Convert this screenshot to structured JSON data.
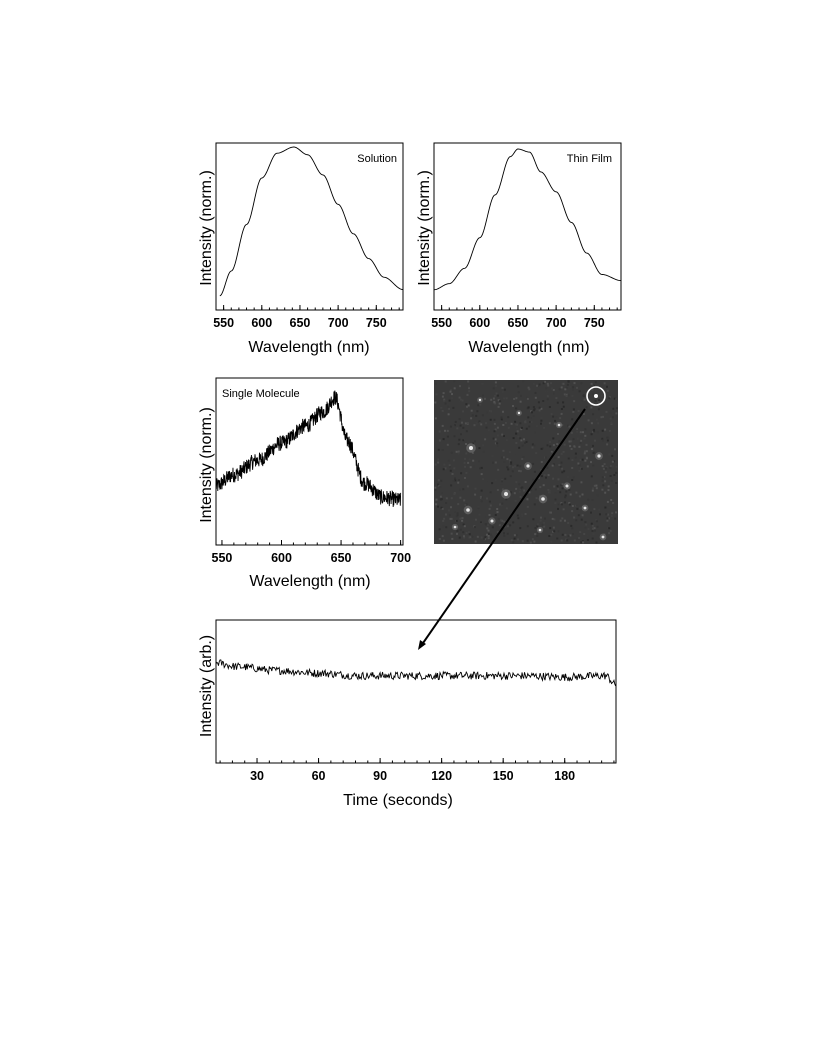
{
  "chart_data": [
    {
      "type": "line",
      "annotation": "Solution",
      "xlabel": "Wavelength (nm)",
      "ylabel": "Intensity (norm.)",
      "xlim": [
        540,
        785
      ],
      "ylim": [
        0,
        1
      ],
      "xticks": [
        550,
        600,
        650,
        700,
        750
      ],
      "peak": {
        "x": 642,
        "y": 1.0
      },
      "x": [
        545,
        560,
        580,
        600,
        620,
        642,
        660,
        680,
        700,
        720,
        740,
        760,
        785
      ],
      "y": [
        0.04,
        0.2,
        0.5,
        0.8,
        0.96,
        1.0,
        0.95,
        0.82,
        0.63,
        0.44,
        0.28,
        0.16,
        0.08
      ]
    },
    {
      "type": "line",
      "annotation": "Thin Film",
      "xlabel": "Wavelength (nm)",
      "ylabel": "Intensity (norm.)",
      "xlim": [
        540,
        785
      ],
      "ylim": [
        0,
        1
      ],
      "xticks": [
        550,
        600,
        650,
        700,
        750
      ],
      "x": [
        540,
        560,
        580,
        600,
        620,
        640,
        650,
        665,
        680,
        700,
        720,
        740,
        760,
        785
      ],
      "y": [
        0.08,
        0.12,
        0.22,
        0.42,
        0.7,
        0.95,
        1.0,
        0.98,
        0.85,
        0.72,
        0.52,
        0.32,
        0.18,
        0.14
      ]
    },
    {
      "type": "line",
      "annotation": "Single Molecule",
      "xlabel": "Wavelength (nm)",
      "ylabel": "Intensity (norm.)",
      "xlim": [
        545,
        702
      ],
      "ylim": [
        0,
        1
      ],
      "xticks": [
        550,
        600,
        650,
        700
      ],
      "noise": 0.055,
      "x": [
        545,
        560,
        580,
        600,
        620,
        635,
        645,
        655,
        670,
        685,
        700
      ],
      "y": [
        0.3,
        0.38,
        0.48,
        0.6,
        0.72,
        0.82,
        0.92,
        0.62,
        0.32,
        0.22,
        0.2
      ]
    },
    {
      "type": "image",
      "annotation": "fluorescence image with circled single molecule"
    },
    {
      "type": "line",
      "xlabel": "Time (seconds)",
      "ylabel": "Intensity (arb.)",
      "xlim": [
        10,
        205
      ],
      "ylim": [
        0,
        1
      ],
      "xticks": [
        30,
        60,
        90,
        120,
        150,
        180
      ],
      "noise": 0.03,
      "x": [
        10,
        20,
        40,
        60,
        80,
        100,
        120,
        140,
        160,
        180,
        200,
        205
      ],
      "y": [
        0.72,
        0.69,
        0.66,
        0.64,
        0.62,
        0.62,
        0.62,
        0.62,
        0.62,
        0.61,
        0.62,
        0.55
      ]
    }
  ]
}
